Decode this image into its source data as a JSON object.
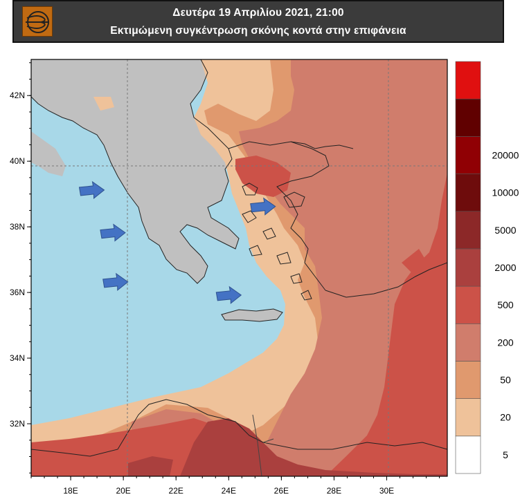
{
  "header": {
    "title": "Δευτέρα 19 Απριλίου 2021, 21:00",
    "subtitle": "Εκτιμώμενη συγκέντρωση σκόνης κοντά στην επιφάνεια",
    "logo_icon": "wind-swirl-logo-icon"
  },
  "chart_data": {
    "type": "heatmap",
    "title": "Εκτιμώμενη συγκέντρωση σκόνης κοντά στην επιφάνεια",
    "x_ticks": [
      {
        "value": 18,
        "label": "18E"
      },
      {
        "value": 20,
        "label": "20E"
      },
      {
        "value": 22,
        "label": "22E"
      },
      {
        "value": 24,
        "label": "24E"
      },
      {
        "value": 26,
        "label": "26E"
      },
      {
        "value": 28,
        "label": "28E"
      },
      {
        "value": 30,
        "label": "30E"
      }
    ],
    "y_ticks": [
      {
        "value": 42,
        "label": "42N"
      },
      {
        "value": 40,
        "label": "40N"
      },
      {
        "value": 38,
        "label": "38N"
      },
      {
        "value": 36,
        "label": "36N"
      },
      {
        "value": 34,
        "label": "34N"
      },
      {
        "value": 32,
        "label": "32N"
      }
    ],
    "xlim": [
      16.5,
      32.3
    ],
    "ylim": [
      30.4,
      43.1
    ],
    "gridlines": {
      "lon": [
        20,
        30
      ],
      "lat": [
        39.8
      ]
    },
    "legend": {
      "position": "right",
      "bins": [
        {
          "color": "#ffffff"
        },
        {
          "color": "#efc29a"
        },
        {
          "color": "#e0996e"
        },
        {
          "color": "#d07d6c"
        },
        {
          "color": "#cc5248"
        },
        {
          "color": "#aa403e"
        },
        {
          "color": "#8c2828"
        },
        {
          "color": "#6e0c0c"
        },
        {
          "color": "#900004"
        },
        {
          "color": "#600000"
        },
        {
          "color": "#e01010"
        }
      ],
      "labels": [
        "5",
        "20",
        "50",
        "200",
        "500",
        "2000",
        "5000",
        "10000",
        "20000"
      ]
    },
    "arrows": [
      {
        "lon": 18.8,
        "lat": 39.1
      },
      {
        "lon": 19.6,
        "lat": 37.8
      },
      {
        "lon": 19.7,
        "lat": 36.3
      },
      {
        "lon": 24.0,
        "lat": 35.9
      },
      {
        "lon": 25.3,
        "lat": 38.6
      }
    ],
    "colors": {
      "sea": "#a8d8e8",
      "land_nodata": "#c0c0c0",
      "arrow": "#4472c4"
    }
  }
}
